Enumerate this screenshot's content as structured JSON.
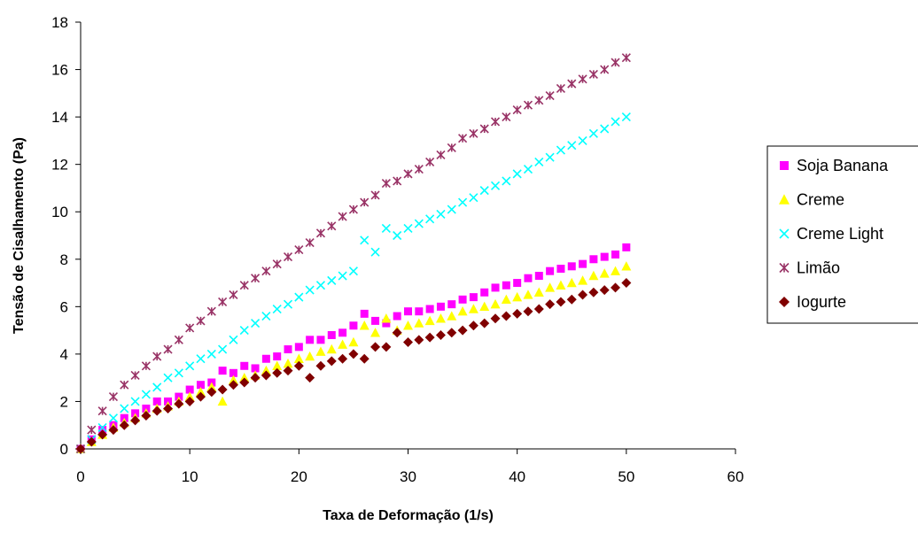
{
  "chart_data": {
    "type": "scatter",
    "title": "",
    "xlabel": "Taxa de Deformação (1/s)",
    "ylabel": "Tensão de Cisalhamento (Pa)",
    "xlim": [
      0,
      60
    ],
    "ylim": [
      0,
      18
    ],
    "xticks": [
      0,
      10,
      20,
      30,
      40,
      50,
      60
    ],
    "yticks": [
      0,
      2,
      4,
      6,
      8,
      10,
      12,
      14,
      16,
      18
    ],
    "grid": false,
    "legend_position": "right",
    "series": [
      {
        "name": "Soja Banana",
        "marker": "square",
        "color": "#ff00ff",
        "points": [
          [
            0,
            0
          ],
          [
            1,
            0.4
          ],
          [
            2,
            0.8
          ],
          [
            3,
            1.0
          ],
          [
            4,
            1.3
          ],
          [
            5,
            1.5
          ],
          [
            6,
            1.7
          ],
          [
            7,
            2.0
          ],
          [
            8,
            2.0
          ],
          [
            9,
            2.2
          ],
          [
            10,
            2.5
          ],
          [
            11,
            2.7
          ],
          [
            12,
            2.8
          ],
          [
            13,
            3.3
          ],
          [
            14,
            3.2
          ],
          [
            15,
            3.5
          ],
          [
            16,
            3.4
          ],
          [
            17,
            3.8
          ],
          [
            18,
            3.9
          ],
          [
            19,
            4.2
          ],
          [
            20,
            4.3
          ],
          [
            21,
            4.6
          ],
          [
            22,
            4.6
          ],
          [
            23,
            4.8
          ],
          [
            24,
            4.9
          ],
          [
            25,
            5.2
          ],
          [
            26,
            5.7
          ],
          [
            27,
            5.4
          ],
          [
            28,
            5.3
          ],
          [
            29,
            5.6
          ],
          [
            30,
            5.8
          ],
          [
            31,
            5.8
          ],
          [
            32,
            5.9
          ],
          [
            33,
            6.0
          ],
          [
            34,
            6.1
          ],
          [
            35,
            6.3
          ],
          [
            36,
            6.4
          ],
          [
            37,
            6.6
          ],
          [
            38,
            6.8
          ],
          [
            39,
            6.9
          ],
          [
            40,
            7.0
          ],
          [
            41,
            7.2
          ],
          [
            42,
            7.3
          ],
          [
            43,
            7.5
          ],
          [
            44,
            7.6
          ],
          [
            45,
            7.7
          ],
          [
            46,
            7.8
          ],
          [
            47,
            8.0
          ],
          [
            48,
            8.1
          ],
          [
            49,
            8.2
          ],
          [
            50,
            8.5
          ]
        ]
      },
      {
        "name": "Creme",
        "marker": "triangle",
        "color": "#ffff00",
        "points": [
          [
            0,
            0
          ],
          [
            1,
            0.3
          ],
          [
            2,
            0.6
          ],
          [
            3,
            0.9
          ],
          [
            4,
            1.1
          ],
          [
            5,
            1.3
          ],
          [
            6,
            1.5
          ],
          [
            7,
            1.7
          ],
          [
            8,
            1.8
          ],
          [
            9,
            2.0
          ],
          [
            10,
            2.2
          ],
          [
            11,
            2.4
          ],
          [
            12,
            2.6
          ],
          [
            13,
            2.0
          ],
          [
            14,
            2.9
          ],
          [
            15,
            3.0
          ],
          [
            16,
            3.1
          ],
          [
            17,
            3.3
          ],
          [
            18,
            3.5
          ],
          [
            19,
            3.6
          ],
          [
            20,
            3.8
          ],
          [
            21,
            3.9
          ],
          [
            22,
            4.1
          ],
          [
            23,
            4.2
          ],
          [
            24,
            4.4
          ],
          [
            25,
            4.5
          ],
          [
            26,
            5.2
          ],
          [
            27,
            4.9
          ],
          [
            28,
            5.5
          ],
          [
            29,
            5.0
          ],
          [
            30,
            5.2
          ],
          [
            31,
            5.3
          ],
          [
            32,
            5.4
          ],
          [
            33,
            5.5
          ],
          [
            34,
            5.6
          ],
          [
            35,
            5.8
          ],
          [
            36,
            5.9
          ],
          [
            37,
            6.0
          ],
          [
            38,
            6.1
          ],
          [
            39,
            6.3
          ],
          [
            40,
            6.4
          ],
          [
            41,
            6.5
          ],
          [
            42,
            6.6
          ],
          [
            43,
            6.8
          ],
          [
            44,
            6.9
          ],
          [
            45,
            7.0
          ],
          [
            46,
            7.1
          ],
          [
            47,
            7.3
          ],
          [
            48,
            7.4
          ],
          [
            49,
            7.5
          ],
          [
            50,
            7.7
          ]
        ]
      },
      {
        "name": "Creme Light",
        "marker": "x",
        "color": "#00ffff",
        "points": [
          [
            0,
            0
          ],
          [
            1,
            0.4
          ],
          [
            2,
            0.9
          ],
          [
            3,
            1.3
          ],
          [
            4,
            1.7
          ],
          [
            5,
            2.0
          ],
          [
            6,
            2.3
          ],
          [
            7,
            2.6
          ],
          [
            8,
            3.0
          ],
          [
            9,
            3.2
          ],
          [
            10,
            3.5
          ],
          [
            11,
            3.8
          ],
          [
            12,
            4.0
          ],
          [
            13,
            4.2
          ],
          [
            14,
            4.6
          ],
          [
            15,
            5.0
          ],
          [
            16,
            5.3
          ],
          [
            17,
            5.6
          ],
          [
            18,
            5.9
          ],
          [
            19,
            6.1
          ],
          [
            20,
            6.4
          ],
          [
            21,
            6.7
          ],
          [
            22,
            6.9
          ],
          [
            23,
            7.1
          ],
          [
            24,
            7.3
          ],
          [
            25,
            7.5
          ],
          [
            26,
            8.8
          ],
          [
            27,
            8.3
          ],
          [
            28,
            9.3
          ],
          [
            29,
            9.0
          ],
          [
            30,
            9.3
          ],
          [
            31,
            9.5
          ],
          [
            32,
            9.7
          ],
          [
            33,
            9.9
          ],
          [
            34,
            10.1
          ],
          [
            35,
            10.4
          ],
          [
            36,
            10.6
          ],
          [
            37,
            10.9
          ],
          [
            38,
            11.1
          ],
          [
            39,
            11.3
          ],
          [
            40,
            11.6
          ],
          [
            41,
            11.8
          ],
          [
            42,
            12.1
          ],
          [
            43,
            12.3
          ],
          [
            44,
            12.6
          ],
          [
            45,
            12.8
          ],
          [
            46,
            13.0
          ],
          [
            47,
            13.3
          ],
          [
            48,
            13.5
          ],
          [
            49,
            13.8
          ],
          [
            50,
            14.0
          ]
        ]
      },
      {
        "name": "Limão",
        "marker": "asterisk",
        "color": "#993366",
        "points": [
          [
            0,
            0
          ],
          [
            1,
            0.8
          ],
          [
            2,
            1.6
          ],
          [
            3,
            2.2
          ],
          [
            4,
            2.7
          ],
          [
            5,
            3.1
          ],
          [
            6,
            3.5
          ],
          [
            7,
            3.9
          ],
          [
            8,
            4.2
          ],
          [
            9,
            4.6
          ],
          [
            10,
            5.1
          ],
          [
            11,
            5.4
          ],
          [
            12,
            5.8
          ],
          [
            13,
            6.2
          ],
          [
            14,
            6.5
          ],
          [
            15,
            6.9
          ],
          [
            16,
            7.2
          ],
          [
            17,
            7.5
          ],
          [
            18,
            7.8
          ],
          [
            19,
            8.1
          ],
          [
            20,
            8.4
          ],
          [
            21,
            8.7
          ],
          [
            22,
            9.1
          ],
          [
            23,
            9.4
          ],
          [
            24,
            9.8
          ],
          [
            25,
            10.1
          ],
          [
            26,
            10.4
          ],
          [
            27,
            10.7
          ],
          [
            28,
            11.2
          ],
          [
            29,
            11.3
          ],
          [
            30,
            11.6
          ],
          [
            31,
            11.8
          ],
          [
            32,
            12.1
          ],
          [
            33,
            12.4
          ],
          [
            34,
            12.7
          ],
          [
            35,
            13.1
          ],
          [
            36,
            13.3
          ],
          [
            37,
            13.5
          ],
          [
            38,
            13.8
          ],
          [
            39,
            14.0
          ],
          [
            40,
            14.3
          ],
          [
            41,
            14.5
          ],
          [
            42,
            14.7
          ],
          [
            43,
            14.9
          ],
          [
            44,
            15.2
          ],
          [
            45,
            15.4
          ],
          [
            46,
            15.6
          ],
          [
            47,
            15.8
          ],
          [
            48,
            16.0
          ],
          [
            49,
            16.3
          ],
          [
            50,
            16.5
          ]
        ]
      },
      {
        "name": "Iogurte",
        "marker": "diamond",
        "color": "#800000",
        "points": [
          [
            0,
            0
          ],
          [
            1,
            0.3
          ],
          [
            2,
            0.6
          ],
          [
            3,
            0.8
          ],
          [
            4,
            1.0
          ],
          [
            5,
            1.2
          ],
          [
            6,
            1.4
          ],
          [
            7,
            1.6
          ],
          [
            8,
            1.7
          ],
          [
            9,
            1.9
          ],
          [
            10,
            2.0
          ],
          [
            11,
            2.2
          ],
          [
            12,
            2.4
          ],
          [
            13,
            2.5
          ],
          [
            14,
            2.7
          ],
          [
            15,
            2.8
          ],
          [
            16,
            3.0
          ],
          [
            17,
            3.1
          ],
          [
            18,
            3.2
          ],
          [
            19,
            3.3
          ],
          [
            20,
            3.5
          ],
          [
            21,
            3.0
          ],
          [
            22,
            3.5
          ],
          [
            23,
            3.7
          ],
          [
            24,
            3.8
          ],
          [
            25,
            4.0
          ],
          [
            26,
            3.8
          ],
          [
            27,
            4.3
          ],
          [
            28,
            4.3
          ],
          [
            29,
            4.9
          ],
          [
            30,
            4.5
          ],
          [
            31,
            4.6
          ],
          [
            32,
            4.7
          ],
          [
            33,
            4.8
          ],
          [
            34,
            4.9
          ],
          [
            35,
            5.0
          ],
          [
            36,
            5.2
          ],
          [
            37,
            5.3
          ],
          [
            38,
            5.5
          ],
          [
            39,
            5.6
          ],
          [
            40,
            5.7
          ],
          [
            41,
            5.8
          ],
          [
            42,
            5.9
          ],
          [
            43,
            6.1
          ],
          [
            44,
            6.2
          ],
          [
            45,
            6.3
          ],
          [
            46,
            6.5
          ],
          [
            47,
            6.6
          ],
          [
            48,
            6.7
          ],
          [
            49,
            6.8
          ],
          [
            50,
            7.0
          ]
        ]
      }
    ]
  }
}
